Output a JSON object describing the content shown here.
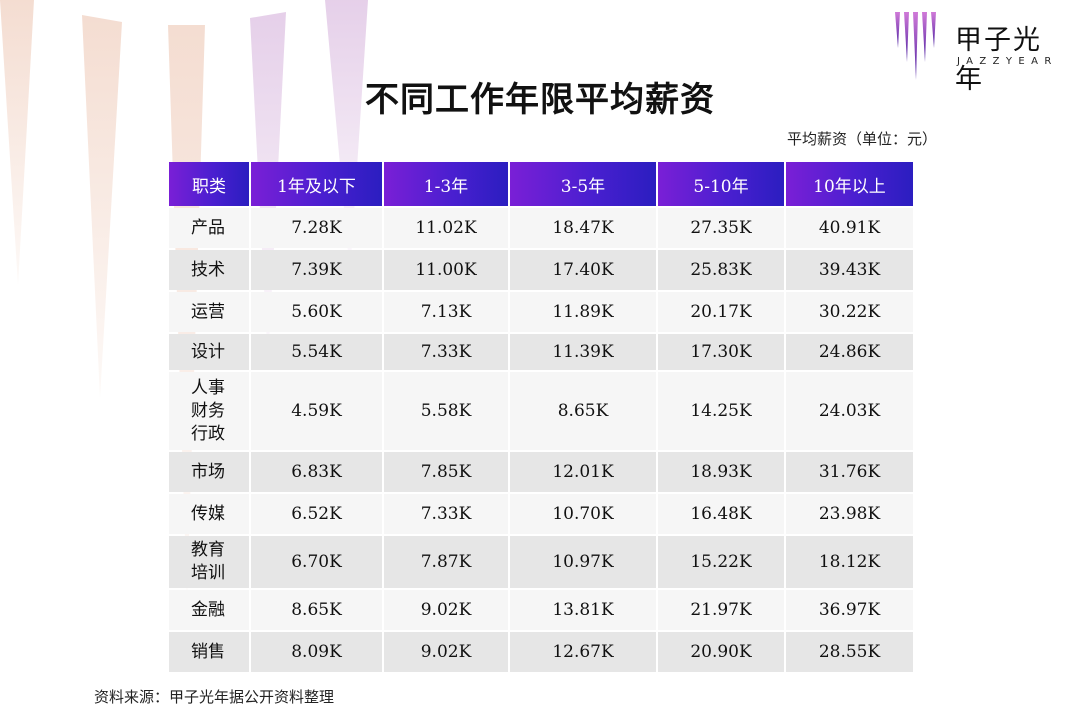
{
  "brand": {
    "name_cn": "甲子光年",
    "name_en": "JAZZYEAR",
    "accent": "#7a1fd6"
  },
  "chart_data": {
    "type": "table",
    "title": "不同工作年限平均薪资",
    "unit_note": "平均薪资（单位：元）",
    "columns": [
      "职类",
      "1年及以下",
      "1-3年",
      "3-5年",
      "5-10年",
      "10年以上"
    ],
    "rows": [
      {
        "category": [
          "产品"
        ],
        "values": [
          "7.28K",
          "11.02K",
          "18.47K",
          "27.35K",
          "40.91K"
        ]
      },
      {
        "category": [
          "技术"
        ],
        "values": [
          "7.39K",
          "11.00K",
          "17.40K",
          "25.83K",
          "39.43K"
        ]
      },
      {
        "category": [
          "运营"
        ],
        "values": [
          "5.60K",
          "7.13K",
          "11.89K",
          "20.17K",
          "30.22K"
        ]
      },
      {
        "category": [
          "设计"
        ],
        "values": [
          "5.54K",
          "7.33K",
          "11.39K",
          "17.30K",
          "24.86K"
        ]
      },
      {
        "category": [
          "人事",
          "财务",
          "行政"
        ],
        "values": [
          "4.59K",
          "5.58K",
          "8.65K",
          "14.25K",
          "24.03K"
        ]
      },
      {
        "category": [
          "市场"
        ],
        "values": [
          "6.83K",
          "7.85K",
          "12.01K",
          "18.93K",
          "31.76K"
        ]
      },
      {
        "category": [
          "传媒"
        ],
        "values": [
          "6.52K",
          "7.33K",
          "10.70K",
          "16.48K",
          "23.98K"
        ]
      },
      {
        "category": [
          "教育",
          "培训"
        ],
        "values": [
          "6.70K",
          "7.87K",
          "10.97K",
          "15.22K",
          "18.12K"
        ]
      },
      {
        "category": [
          "金融"
        ],
        "values": [
          "8.65K",
          "9.02K",
          "13.81K",
          "21.97K",
          "36.97K"
        ]
      },
      {
        "category": [
          "销售"
        ],
        "values": [
          "8.09K",
          "9.02K",
          "12.67K",
          "20.90K",
          "28.55K"
        ]
      }
    ],
    "header_colors": [
      "#7a1fd6",
      "#2b1ec0"
    ],
    "row_colors": [
      "#f6f6f6",
      "#e6e6e6"
    ]
  },
  "footer": {
    "source": "资料来源：甲子光年据公开资料整理"
  }
}
